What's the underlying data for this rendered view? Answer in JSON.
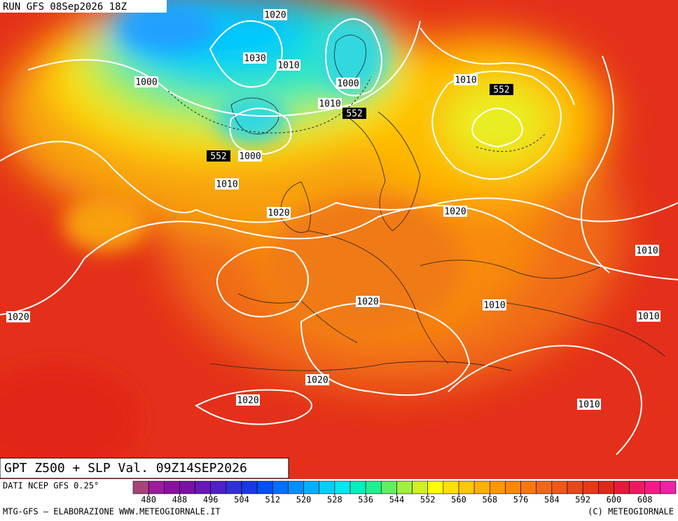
{
  "run_label": "RUN GFS 08Sep2026 18Z",
  "map_title": "GPT Z500 + SLP Val. 09Z14SEP2026",
  "source": "DATI NCEP GFS 0.25°",
  "credit_left": "MTG-GFS — ELABORAZIONE WWW.METEOGIORNALE.IT",
  "credit_right": "(C) METEOGIORNALE",
  "colorbar": {
    "range": [
      476,
      616
    ],
    "ticks": [
      480,
      488,
      496,
      504,
      512,
      520,
      528,
      536,
      544,
      552,
      560,
      568,
      576,
      584,
      592,
      600,
      608
    ],
    "colors": [
      "#a8447a",
      "#9c1c9c",
      "#8c10a0",
      "#7a10a8",
      "#6818b8",
      "#5020c8",
      "#3030d8",
      "#1838e8",
      "#0050f8",
      "#0070ff",
      "#0090ff",
      "#00b0ff",
      "#00d0ff",
      "#00e8f0",
      "#00f0c0",
      "#20f090",
      "#60f060",
      "#a0f040",
      "#d0f020",
      "#ffff00",
      "#ffe000",
      "#ffc800",
      "#ffb000",
      "#ff9800",
      "#ff8800",
      "#f87810",
      "#f06818",
      "#f05818",
      "#e84818",
      "#e83818",
      "#e02818",
      "#e81838",
      "#f01860",
      "#f81888",
      "#f020a8"
    ]
  },
  "pressure_labels": [
    "1020",
    "1030",
    "1010",
    "1000",
    "1000",
    "1010",
    "1010",
    "1000",
    "1010",
    "1020",
    "1020",
    "1010",
    "1020",
    "1010",
    "1020",
    "1010",
    "1020",
    "1020",
    "1010"
  ],
  "height_labels": [
    "552",
    "552",
    "552"
  ]
}
